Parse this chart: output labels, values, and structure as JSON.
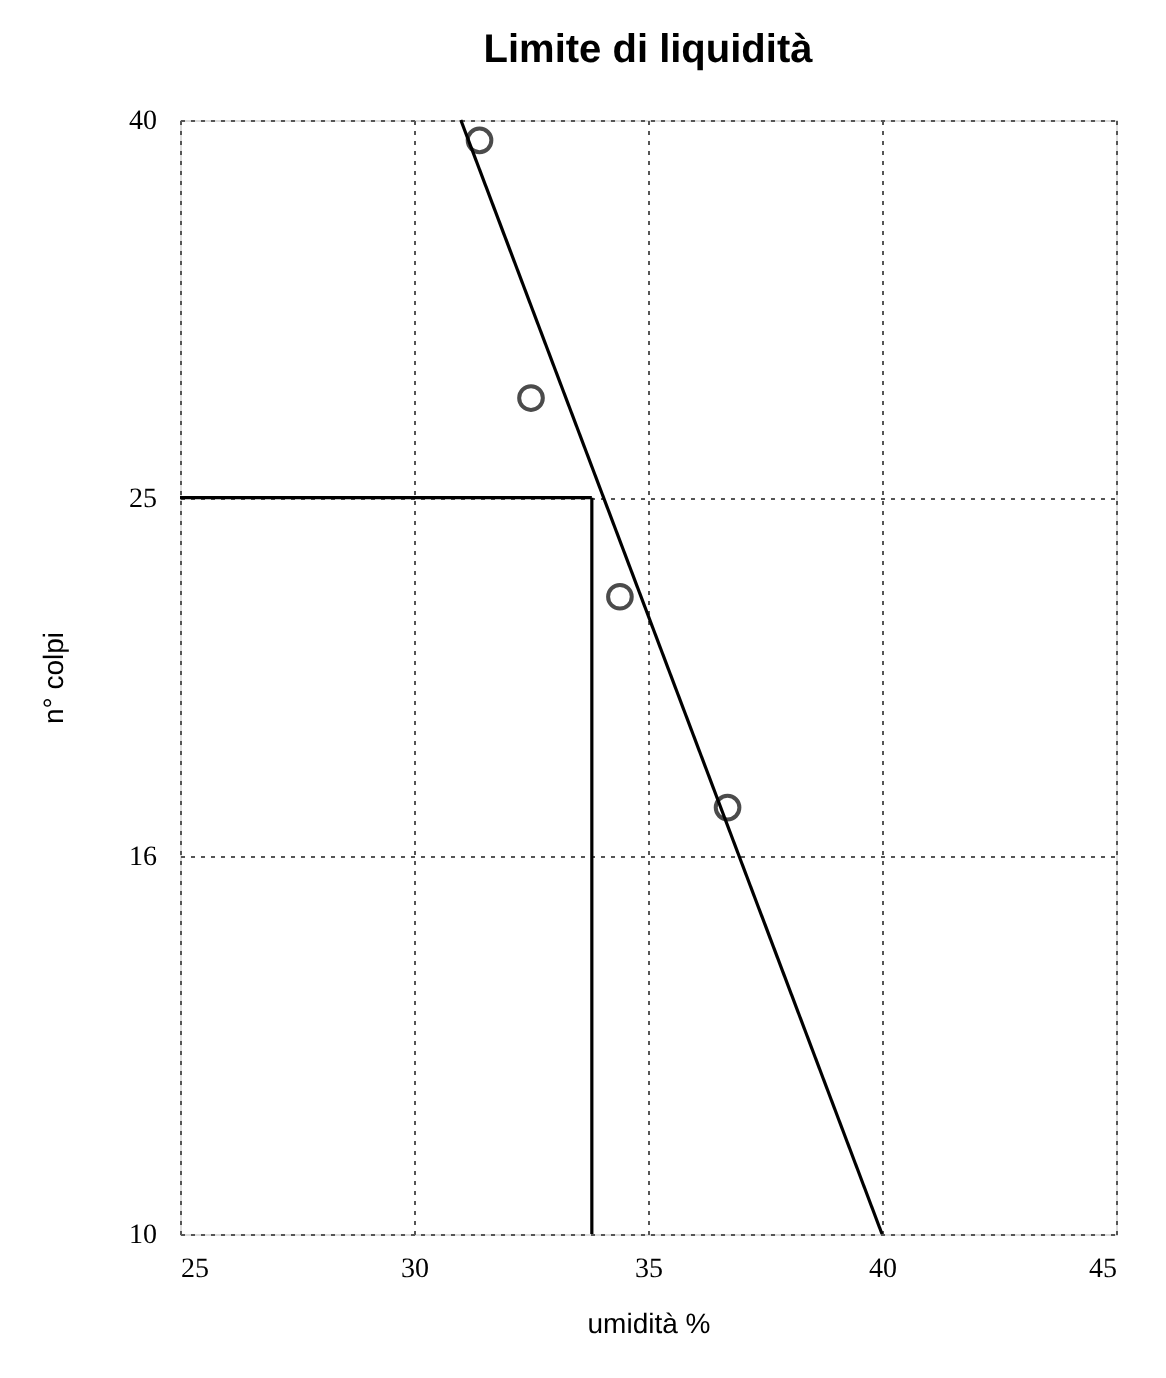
{
  "chart_data": {
    "type": "scatter",
    "title": "Limite di liquidità",
    "xlabel": "umidità %",
    "ylabel": "n° colpi",
    "xlim": [
      25,
      45
    ],
    "xticks": [
      25,
      30,
      35,
      40,
      45
    ],
    "ylim": [
      10,
      40
    ],
    "yticks": [
      10,
      16,
      25,
      40
    ],
    "log": "y",
    "grid": true,
    "series": [
      {
        "color": "#000000",
        "marker": "circle",
        "x": [
          31.4,
          32.5,
          34.4,
          36.7
        ],
        "values": [
          39,
          28.3,
          22.1,
          17
        ]
      },
      {
        "type": "line",
        "color": "#000000",
        "x": [
          31,
          40
        ],
        "values": [
          40,
          10
        ]
      },
      {
        "type": "line",
        "color": "#000000",
        "x": [
          25,
          33.8
        ],
        "values": [
          25,
          25
        ]
      },
      {
        "type": "line",
        "color": "#000000",
        "x": [
          33.8,
          33.8
        ],
        "values": [
          10,
          25
        ]
      }
    ]
  }
}
